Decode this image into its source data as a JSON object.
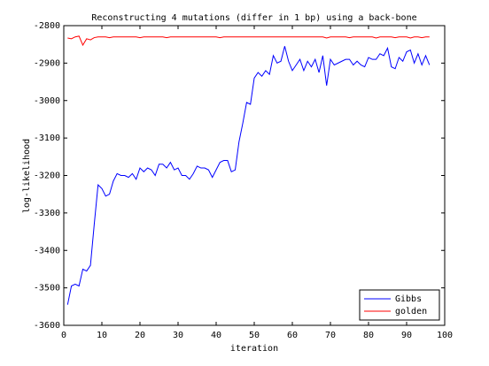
{
  "chart_data": {
    "type": "line",
    "title": "Reconstructing 4 mutations (differ in 1 bp) using a back-bone",
    "x_label": "iteration",
    "y_label": "log-likelihood",
    "x": [
      1,
      2,
      3,
      4,
      5,
      6,
      7,
      8,
      9,
      10,
      11,
      12,
      13,
      14,
      15,
      16,
      17,
      18,
      19,
      20,
      21,
      22,
      23,
      24,
      25,
      26,
      27,
      28,
      29,
      30,
      31,
      32,
      33,
      34,
      35,
      36,
      37,
      38,
      39,
      40,
      41,
      42,
      43,
      44,
      45,
      46,
      47,
      48,
      49,
      50,
      51,
      52,
      53,
      54,
      55,
      56,
      57,
      58,
      59,
      60,
      61,
      62,
      63,
      64,
      65,
      66,
      67,
      68,
      69,
      70,
      71,
      72,
      73,
      74,
      75,
      76,
      77,
      78,
      79,
      80,
      81,
      82,
      83,
      84,
      85,
      86,
      87,
      88,
      89,
      90,
      91,
      92,
      93,
      94,
      95,
      96
    ],
    "series": [
      {
        "name": "Gibbs",
        "color": "#0000ff",
        "values": [
          -3545,
          -3495,
          -3490,
          -3495,
          -3450,
          -3455,
          -3440,
          -3330,
          -3225,
          -3235,
          -3255,
          -3250,
          -3215,
          -3195,
          -3200,
          -3200,
          -3205,
          -3195,
          -3210,
          -3180,
          -3190,
          -3180,
          -3185,
          -3200,
          -3170,
          -3170,
          -3180,
          -3165,
          -3185,
          -3180,
          -3200,
          -3200,
          -3210,
          -3195,
          -3175,
          -3180,
          -3180,
          -3185,
          -3205,
          -3185,
          -3165,
          -3160,
          -3160,
          -3190,
          -3185,
          -3110,
          -3060,
          -3005,
          -3010,
          -2940,
          -2925,
          -2935,
          -2920,
          -2930,
          -2880,
          -2900,
          -2895,
          -2855,
          -2895,
          -2920,
          -2905,
          -2890,
          -2920,
          -2895,
          -2910,
          -2890,
          -2925,
          -2880,
          -2960,
          -2890,
          -2905,
          -2900,
          -2895,
          -2890,
          -2890,
          -2905,
          -2895,
          -2905,
          -2910,
          -2885,
          -2890,
          -2890,
          -2875,
          -2880,
          -2860,
          -2910,
          -2915,
          -2885,
          -2895,
          -2870,
          -2865,
          -2900,
          -2875,
          -2905,
          -2880,
          -2905
        ]
      },
      {
        "name": "golden",
        "color": "#ff0000",
        "values": [
          -2833,
          -2835,
          -2830,
          -2828,
          -2852,
          -2835,
          -2838,
          -2832,
          -2830,
          -2830,
          -2830,
          -2832,
          -2830,
          -2830,
          -2830,
          -2830,
          -2830,
          -2830,
          -2830,
          -2832,
          -2830,
          -2830,
          -2830,
          -2830,
          -2830,
          -2830,
          -2832,
          -2830,
          -2830,
          -2830,
          -2830,
          -2830,
          -2830,
          -2830,
          -2830,
          -2830,
          -2830,
          -2830,
          -2830,
          -2830,
          -2832,
          -2830,
          -2830,
          -2830,
          -2830,
          -2830,
          -2830,
          -2830,
          -2830,
          -2830,
          -2830,
          -2830,
          -2830,
          -2830,
          -2830,
          -2830,
          -2830,
          -2830,
          -2830,
          -2830,
          -2830,
          -2830,
          -2830,
          -2830,
          -2830,
          -2830,
          -2830,
          -2830,
          -2833,
          -2830,
          -2830,
          -2830,
          -2830,
          -2830,
          -2832,
          -2830,
          -2830,
          -2830,
          -2830,
          -2830,
          -2830,
          -2833,
          -2830,
          -2830,
          -2830,
          -2830,
          -2832,
          -2830,
          -2830,
          -2830,
          -2833,
          -2830,
          -2830,
          -2832,
          -2830,
          -2830
        ]
      }
    ],
    "xlim": [
      0,
      100
    ],
    "xticks": [
      0,
      10,
      20,
      30,
      40,
      50,
      60,
      70,
      80,
      90,
      100
    ],
    "ylim": [
      -3600,
      -2800
    ],
    "yticks": [
      -3600,
      -3500,
      -3400,
      -3300,
      -3200,
      -3100,
      -3000,
      -2900,
      -2800
    ],
    "grid": false,
    "legend": "lower right"
  }
}
